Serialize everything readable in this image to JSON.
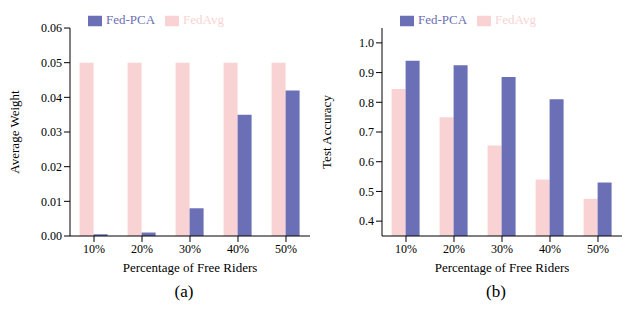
{
  "chart_data": [
    {
      "type": "bar",
      "subtitle": "(a)",
      "x_label": "Percentage of Free Riders",
      "y_label": "Average Weight",
      "categories": [
        "10%",
        "20%",
        "30%",
        "40%",
        "50%"
      ],
      "series": [
        {
          "name": "FedAvg",
          "color": "#f9d3d3",
          "values": [
            0.05,
            0.05,
            0.05,
            0.05,
            0.05
          ]
        },
        {
          "name": "Fed-PCA",
          "color": "#6b6fb5",
          "values": [
            0.0005,
            0.001,
            0.008,
            0.035,
            0.042
          ]
        }
      ],
      "ylim": [
        0,
        0.06
      ],
      "yticks": [
        {
          "value": 0,
          "label": "0.00"
        },
        {
          "value": 0.01,
          "label": "0.01"
        },
        {
          "value": 0.02,
          "label": "0.02"
        },
        {
          "value": 0.03,
          "label": "0.03"
        },
        {
          "value": 0.04,
          "label": "0.04"
        },
        {
          "value": 0.05,
          "label": "0.05"
        },
        {
          "value": 0.06,
          "label": "0.06"
        }
      ],
      "legend": "top"
    },
    {
      "type": "bar",
      "subtitle": "(b)",
      "x_label": "Percentage of Free Riders",
      "y_label": "Test Accuracy",
      "categories": [
        "10%",
        "20%",
        "30%",
        "40%",
        "50%"
      ],
      "series": [
        {
          "name": "FedAvg",
          "color": "#f9d3d3",
          "values": [
            0.845,
            0.75,
            0.655,
            0.54,
            0.475
          ]
        },
        {
          "name": "Fed-PCA",
          "color": "#6b6fb5",
          "values": [
            0.94,
            0.925,
            0.885,
            0.81,
            0.53
          ]
        }
      ],
      "ylim": [
        0.35,
        1.05
      ],
      "yticks": [
        {
          "value": 0.4,
          "label": "0.4"
        },
        {
          "value": 0.5,
          "label": "0.5"
        },
        {
          "value": 0.6,
          "label": "0.6"
        },
        {
          "value": 0.7,
          "label": "0.7"
        },
        {
          "value": 0.8,
          "label": "0.8"
        },
        {
          "value": 0.9,
          "label": "0.9"
        },
        {
          "value": 1.0,
          "label": "1.0"
        }
      ],
      "legend": "top"
    }
  ]
}
